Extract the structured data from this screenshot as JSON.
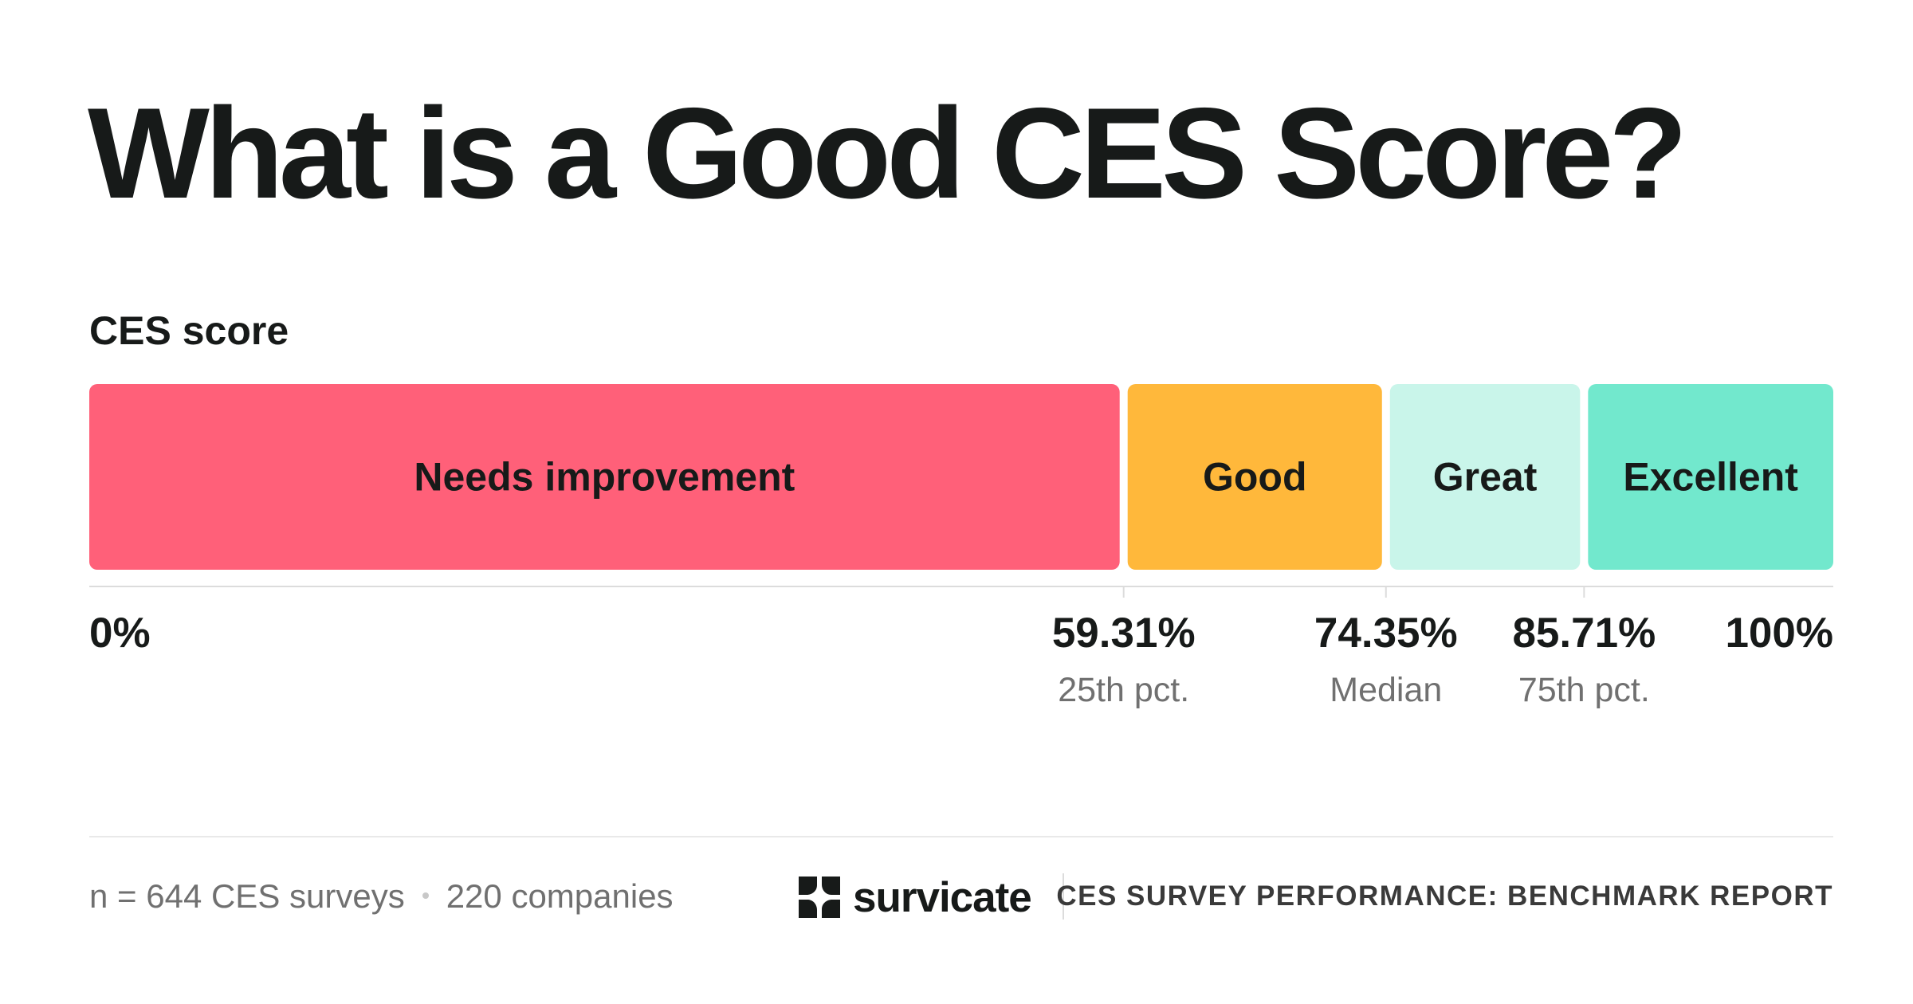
{
  "title": "What is a Good CES Score?",
  "section_label": "CES score",
  "chart_data": {
    "type": "bar",
    "orientation": "horizontal-segmented",
    "xlim": [
      0,
      100
    ],
    "segments": [
      {
        "label": "Needs improvement",
        "start": 0,
        "end": 59.31,
        "color": "#ff6079"
      },
      {
        "label": "Good",
        "start": 59.31,
        "end": 74.35,
        "color": "#ffb83b"
      },
      {
        "label": "Great",
        "start": 74.35,
        "end": 85.71,
        "color": "#c9f5ea"
      },
      {
        "label": "Excellent",
        "start": 85.71,
        "end": 100,
        "color": "#72e8cd"
      }
    ],
    "ticks": [
      {
        "value": 0,
        "label": "0%",
        "sublabel": ""
      },
      {
        "value": 59.31,
        "label": "59.31%",
        "sublabel": "25th pct."
      },
      {
        "value": 74.35,
        "label": "74.35%",
        "sublabel": "Median"
      },
      {
        "value": 85.71,
        "label": "85.71%",
        "sublabel": "75th pct."
      },
      {
        "value": 100,
        "label": "100%",
        "sublabel": ""
      }
    ]
  },
  "footer": {
    "sample": "n = 644 CES surveys",
    "companies": "220 companies",
    "brand": "survicate",
    "report": "CES SURVEY PERFORMANCE: BENCHMARK REPORT"
  },
  "colors": {
    "text": "#171a19",
    "muted": "#707070",
    "axis": "#dcdcdc"
  },
  "icons": {
    "brand_logo": "survicate-logo-icon"
  }
}
